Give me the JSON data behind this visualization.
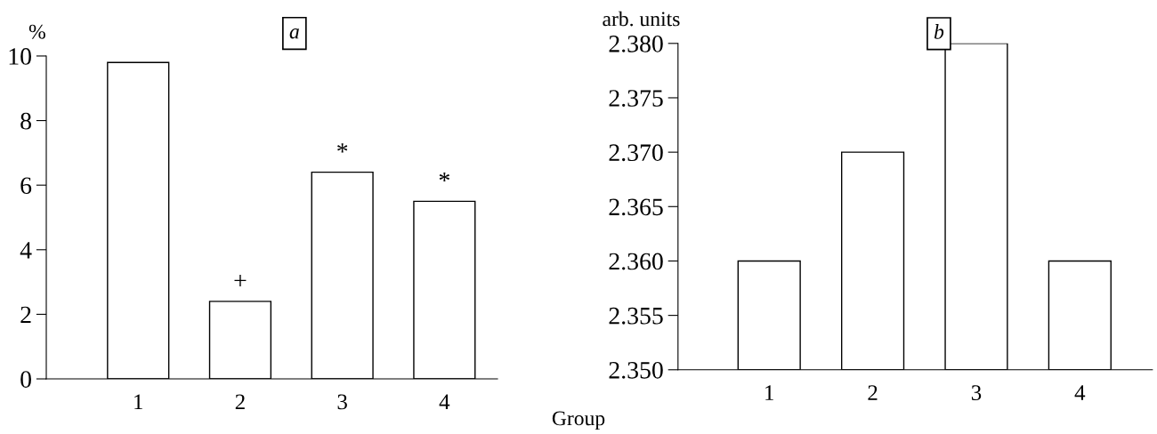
{
  "chart_data": [
    {
      "type": "bar",
      "title": "a",
      "ylabel": "%",
      "xlabel": "Group",
      "categories": [
        "1",
        "2",
        "3",
        "4"
      ],
      "values": [
        9.8,
        2.4,
        6.4,
        5.5
      ],
      "color": "#ffffff",
      "ylim": [
        0,
        10
      ],
      "yticks": [
        0,
        2,
        4,
        6,
        8,
        10
      ],
      "grid": false,
      "legend": false,
      "annotations": [
        {
          "text": "+",
          "x": "2",
          "y": 2.4
        },
        {
          "text": "*",
          "x": "3",
          "y": 6.4
        },
        {
          "text": "*",
          "x": "4",
          "y": 5.5
        }
      ]
    },
    {
      "type": "bar",
      "title": "b",
      "ylabel": "arb. units",
      "categories": [
        "1",
        "2",
        "3",
        "4"
      ],
      "values": [
        2.36,
        2.37,
        2.38,
        2.36
      ],
      "color": "#ffffff",
      "ylim": [
        2.35,
        2.38
      ],
      "grid": false,
      "legend": false,
      "yticks": [
        {
          "value": 2.35,
          "label": "2.350"
        },
        {
          "value": 2.355,
          "label": "2.355"
        },
        {
          "value": 2.36,
          "label": "2.360"
        },
        {
          "value": 2.365,
          "label": "2.365"
        },
        {
          "value": 2.37,
          "label": "2.370"
        },
        {
          "value": 2.375,
          "label": "2.375"
        },
        {
          "value": 2.38,
          "label": "2.380"
        }
      ]
    }
  ]
}
